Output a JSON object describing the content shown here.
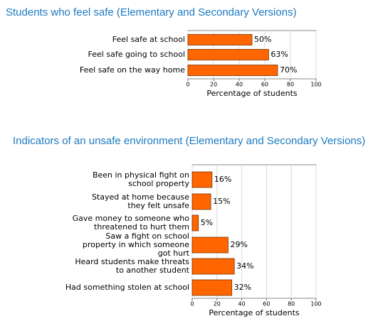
{
  "chart_data": [
    {
      "type": "bar",
      "orientation": "horizontal",
      "title": "Students who feel safe (Elementary and Secondary Versions)",
      "categories": [
        [
          "Feel safe at school"
        ],
        [
          "Feel safe going to school"
        ],
        [
          "Feel safe on the way home"
        ]
      ],
      "values": [
        50,
        63,
        70
      ],
      "value_labels": [
        "50%",
        "63%",
        "70%"
      ],
      "color": "#ff6600",
      "xlim": [
        0,
        100
      ],
      "xticks": [
        0,
        20,
        40,
        60,
        80,
        100
      ],
      "xlabel": "Percentage of students",
      "grid": true
    },
    {
      "type": "bar",
      "orientation": "horizontal",
      "title": "Indicators of an unsafe environment (Elementary and Secondary Versions)",
      "categories": [
        [
          "Been in physical fight on",
          "school property"
        ],
        [
          "Stayed at home because",
          "they felt unsafe"
        ],
        [
          "Gave money to someone who",
          "threatened to hurt them"
        ],
        [
          "Saw a fight on school",
          "property in which someone",
          "got hurt"
        ],
        [
          "Heard students make threats",
          "to another student"
        ],
        [
          "Had something stolen at school"
        ]
      ],
      "values": [
        16,
        15,
        5,
        29,
        34,
        32
      ],
      "value_labels": [
        "16%",
        "15%",
        "5%",
        "29%",
        "34%",
        "32%"
      ],
      "color": "#ff6600",
      "xlim": [
        0,
        100
      ],
      "xticks": [
        0,
        20,
        40,
        60,
        80,
        100
      ],
      "xlabel": "Percentage of students",
      "grid": true
    }
  ]
}
